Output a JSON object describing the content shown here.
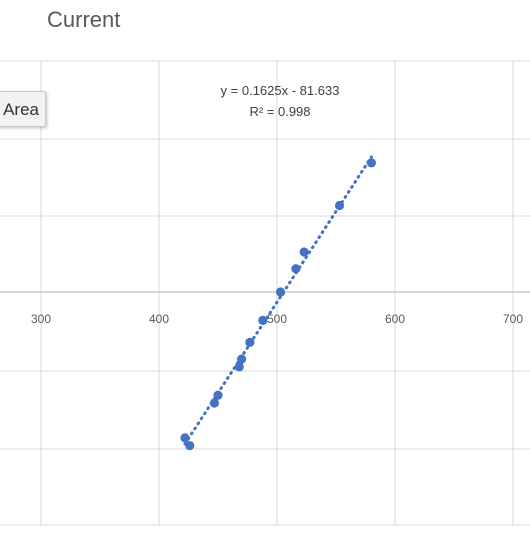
{
  "chart_data": {
    "type": "scatter",
    "title": "Current",
    "xlabel": "",
    "ylabel": "",
    "xlim": [
      250,
      700
    ],
    "ylim": [
      -8,
      2.8
    ],
    "x_ticks": [
      300,
      400,
      500,
      600,
      700
    ],
    "x_tick_labels": [
      "300",
      "400",
      "500",
      "600",
      "700"
    ],
    "grid": true,
    "marker_color": "#4472c4",
    "series": [
      {
        "points": [
          {
            "x": 422,
            "y": 6.9
          },
          {
            "x": 426,
            "y": 6.3
          },
          {
            "x": 447,
            "y": 9.6
          },
          {
            "x": 450,
            "y": 10.2
          },
          {
            "x": 468,
            "y": 12.4
          },
          {
            "x": 470,
            "y": 13.0
          },
          {
            "x": 477,
            "y": 14.3
          },
          {
            "x": 488,
            "y": 16.0
          },
          {
            "x": 503,
            "y": 18.2
          },
          {
            "x": 516,
            "y": 20.0
          },
          {
            "x": 523,
            "y": 21.3
          },
          {
            "x": 553,
            "y": 24.9
          },
          {
            "x": 580,
            "y": 28.2
          }
        ]
      }
    ],
    "trendline": {
      "style": "dotted",
      "slope": 0.1625,
      "intercept": -81.633,
      "x_range": [
        422,
        580
      ],
      "equation": "y = 0.1625x - 81.633",
      "r_squared": "R² = 0.998"
    }
  },
  "ui": {
    "title": "Current",
    "floating_label": "Area"
  }
}
